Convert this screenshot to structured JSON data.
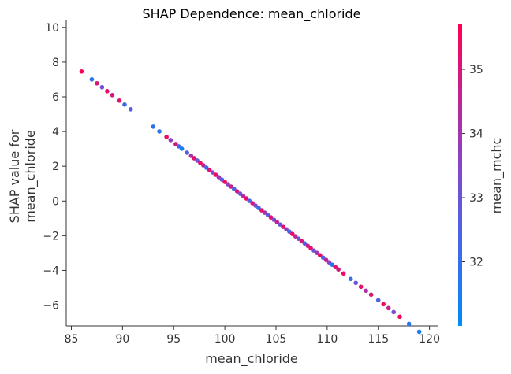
{
  "chart_data": {
    "type": "scatter",
    "title": "SHAP Dependence: mean_chloride",
    "xlabel": "mean_chloride",
    "ylabel_lines": [
      "SHAP value for",
      "mean_chloride"
    ],
    "xlim": [
      84.5,
      120.8
    ],
    "ylim": [
      -7.2,
      10.4
    ],
    "x_ticks": [
      85,
      90,
      95,
      100,
      105,
      110,
      115,
      120
    ],
    "y_ticks": [
      -6,
      -4,
      -2,
      0,
      2,
      4,
      6,
      8,
      10
    ],
    "y_tick_labels": [
      "−6",
      "−4",
      "−2",
      "0",
      "2",
      "4",
      "6",
      "8",
      "10"
    ],
    "colorbar": {
      "label": "mean_mchc",
      "range": [
        31.0,
        35.7
      ],
      "ticks": [
        32,
        33,
        34,
        35
      ],
      "color_low": "#008afb",
      "color_high": "#ff0052"
    },
    "trend": {
      "slope": -0.4545,
      "intercept": 46.55
    },
    "points": [
      [
        86.0,
        35.6
      ],
      [
        87.0,
        31.8
      ],
      [
        87.5,
        35.0
      ],
      [
        88.0,
        33.2
      ],
      [
        88.5,
        35.3
      ],
      [
        89.0,
        35.0
      ],
      [
        89.7,
        35.2
      ],
      [
        90.2,
        32.2
      ],
      [
        90.8,
        32.6
      ],
      [
        93.0,
        31.9
      ],
      [
        93.6,
        31.8
      ],
      [
        94.3,
        35.3
      ],
      [
        94.7,
        33.8
      ],
      [
        95.2,
        35.0
      ],
      [
        95.5,
        32.1
      ],
      [
        95.8,
        31.5
      ],
      [
        96.3,
        32.6
      ],
      [
        96.7,
        34.2
      ],
      [
        97.0,
        35.2
      ],
      [
        97.3,
        33.0
      ],
      [
        97.6,
        35.4
      ],
      [
        97.9,
        34.6
      ],
      [
        98.2,
        32.3
      ],
      [
        98.5,
        35.1
      ],
      [
        98.8,
        33.4
      ],
      [
        99.1,
        35.3
      ],
      [
        99.4,
        34.0
      ],
      [
        99.7,
        32.8
      ],
      [
        100.0,
        35.5
      ],
      [
        100.3,
        33.6
      ],
      [
        100.6,
        34.8
      ],
      [
        100.9,
        32.5
      ],
      [
        101.2,
        35.0
      ],
      [
        101.5,
        33.1
      ],
      [
        101.8,
        34.4
      ],
      [
        102.1,
        35.4
      ],
      [
        102.4,
        32.4
      ],
      [
        102.7,
        34.9
      ],
      [
        103.0,
        33.5
      ],
      [
        103.3,
        31.9
      ],
      [
        103.6,
        35.2
      ],
      [
        103.9,
        34.1
      ],
      [
        104.2,
        32.7
      ],
      [
        104.5,
        35.3
      ],
      [
        104.8,
        33.3
      ],
      [
        105.1,
        34.6
      ],
      [
        105.4,
        32.9
      ],
      [
        105.7,
        35.1
      ],
      [
        106.0,
        33.8
      ],
      [
        106.3,
        32.2
      ],
      [
        106.6,
        35.4
      ],
      [
        106.9,
        34.3
      ],
      [
        107.2,
        33.0
      ],
      [
        107.5,
        35.0
      ],
      [
        107.8,
        32.6
      ],
      [
        108.1,
        34.7
      ],
      [
        108.4,
        35.3
      ],
      [
        108.7,
        33.2
      ],
      [
        109.0,
        34.0
      ],
      [
        109.3,
        35.5
      ],
      [
        109.6,
        32.4
      ],
      [
        109.9,
        34.5
      ],
      [
        110.2,
        33.6
      ],
      [
        110.5,
        31.8
      ],
      [
        110.8,
        35.2
      ],
      [
        111.1,
        34.8
      ],
      [
        111.6,
        35.4
      ],
      [
        112.3,
        32.1
      ],
      [
        112.8,
        33.0
      ],
      [
        113.3,
        35.3
      ],
      [
        113.8,
        34.2
      ],
      [
        114.3,
        35.0
      ],
      [
        115.0,
        32.5
      ],
      [
        115.5,
        35.4
      ],
      [
        116.0,
        34.6
      ],
      [
        116.5,
        33.3
      ],
      [
        117.1,
        35.5
      ],
      [
        118.0,
        31.7
      ],
      [
        119.0,
        31.5
      ]
    ]
  }
}
